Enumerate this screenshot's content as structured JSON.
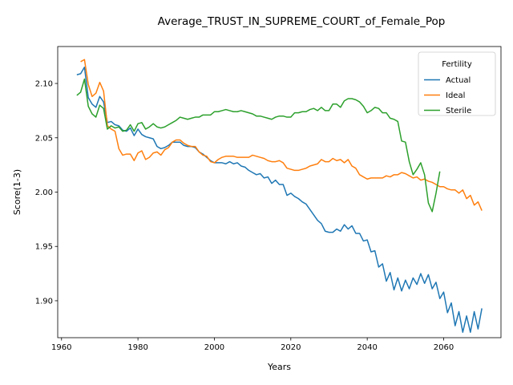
{
  "chart_data": {
    "type": "line",
    "title": "Average_TRUST_IN_SUPREME_COURT_of_Female_Pop",
    "xlabel": "Years",
    "ylabel": "Score(1-3)",
    "xlim": [
      1959,
      2075
    ],
    "ylim": [
      1.866,
      2.134
    ],
    "xticks": [
      1960,
      1980,
      2000,
      2020,
      2040,
      2060
    ],
    "yticks": [
      1.9,
      1.95,
      2.0,
      2.05,
      2.1
    ],
    "ytick_labels": [
      "1.90",
      "1.95",
      "2.00",
      "2.05",
      "2.10"
    ],
    "grid": false,
    "legend": {
      "title": "Fertility",
      "position": "top-right"
    },
    "series": [
      {
        "name": "Actual",
        "color": "#1f77b4",
        "x": [
          1964,
          1965,
          1966,
          1967,
          1968,
          1969,
          1970,
          1971,
          1972,
          1973,
          1974,
          1975,
          1976,
          1977,
          1978,
          1979,
          1980,
          1981,
          1982,
          1983,
          1984,
          1985,
          1986,
          1987,
          1988,
          1989,
          1990,
          1991,
          1992,
          1993,
          1994,
          1995,
          1996,
          1997,
          1998,
          1999,
          2000,
          2001,
          2002,
          2003,
          2004,
          2005,
          2006,
          2007,
          2008,
          2009,
          2010,
          2011,
          2012,
          2013,
          2014,
          2015,
          2016,
          2017,
          2018,
          2019,
          2020,
          2021,
          2022,
          2023,
          2024,
          2025,
          2026,
          2027,
          2028,
          2029,
          2030,
          2031,
          2032,
          2033,
          2034,
          2035,
          2036,
          2037,
          2038,
          2039,
          2040,
          2041,
          2042,
          2043,
          2044,
          2045,
          2046,
          2047,
          2048,
          2049,
          2050,
          2051,
          2052,
          2053,
          2054,
          2055,
          2056,
          2057,
          2058,
          2059,
          2060,
          2061,
          2062,
          2063,
          2064,
          2065,
          2066,
          2067,
          2068,
          2069,
          2070
        ],
        "y": [
          2.108,
          2.109,
          2.115,
          2.087,
          2.081,
          2.078,
          2.088,
          2.083,
          2.064,
          2.065,
          2.062,
          2.061,
          2.057,
          2.056,
          2.059,
          2.052,
          2.058,
          2.053,
          2.051,
          2.05,
          2.049,
          2.042,
          2.04,
          2.041,
          2.043,
          2.046,
          2.046,
          2.046,
          2.043,
          2.042,
          2.042,
          2.041,
          2.037,
          2.035,
          2.032,
          2.029,
          2.027,
          2.027,
          2.027,
          2.026,
          2.028,
          2.026,
          2.027,
          2.024,
          2.023,
          2.02,
          2.018,
          2.016,
          2.017,
          2.013,
          2.014,
          2.008,
          2.011,
          2.007,
          2.007,
          1.997,
          1.999,
          1.996,
          1.994,
          1.991,
          1.989,
          1.984,
          1.979,
          1.974,
          1.971,
          1.964,
          1.963,
          1.963,
          1.966,
          1.964,
          1.97,
          1.966,
          1.969,
          1.962,
          1.962,
          1.955,
          1.956,
          1.945,
          1.946,
          1.931,
          1.934,
          1.918,
          1.926,
          1.91,
          1.921,
          1.909,
          1.919,
          1.911,
          1.921,
          1.915,
          1.925,
          1.916,
          1.924,
          1.911,
          1.917,
          1.902,
          1.908,
          1.889,
          1.898,
          1.877,
          1.89,
          1.871,
          1.886,
          1.871,
          1.89,
          1.874,
          1.893
        ]
      },
      {
        "name": "Ideal",
        "color": "#ff7f0e",
        "x": [
          1965,
          1966,
          1967,
          1968,
          1969,
          1970,
          1971,
          1972,
          1973,
          1974,
          1975,
          1976,
          1977,
          1978,
          1979,
          1980,
          1981,
          1982,
          1983,
          1984,
          1985,
          1986,
          1987,
          1988,
          1989,
          1990,
          1991,
          1992,
          1993,
          1994,
          1995,
          1996,
          1997,
          1998,
          1999,
          2000,
          2001,
          2002,
          2003,
          2004,
          2005,
          2006,
          2007,
          2008,
          2009,
          2010,
          2011,
          2012,
          2013,
          2014,
          2015,
          2016,
          2017,
          2018,
          2019,
          2020,
          2021,
          2022,
          2023,
          2024,
          2025,
          2026,
          2027,
          2028,
          2029,
          2030,
          2031,
          2032,
          2033,
          2034,
          2035,
          2036,
          2037,
          2038,
          2039,
          2040,
          2041,
          2042,
          2043,
          2044,
          2045,
          2046,
          2047,
          2048,
          2049,
          2050,
          2051,
          2052,
          2053,
          2054,
          2055,
          2056,
          2057,
          2058,
          2059,
          2060,
          2061,
          2062,
          2063,
          2064,
          2065,
          2066,
          2067,
          2068,
          2069,
          2070
        ],
        "y": [
          2.12,
          2.122,
          2.099,
          2.088,
          2.091,
          2.101,
          2.093,
          2.061,
          2.058,
          2.056,
          2.04,
          2.034,
          2.035,
          2.035,
          2.029,
          2.036,
          2.038,
          2.03,
          2.032,
          2.036,
          2.037,
          2.034,
          2.039,
          2.041,
          2.046,
          2.048,
          2.048,
          2.045,
          2.043,
          2.042,
          2.042,
          2.037,
          2.034,
          2.033,
          2.028,
          2.027,
          2.03,
          2.032,
          2.033,
          2.033,
          2.033,
          2.032,
          2.032,
          2.032,
          2.032,
          2.034,
          2.033,
          2.032,
          2.031,
          2.029,
          2.028,
          2.028,
          2.029,
          2.027,
          2.022,
          2.021,
          2.02,
          2.02,
          2.021,
          2.022,
          2.024,
          2.025,
          2.026,
          2.03,
          2.028,
          2.028,
          2.031,
          2.029,
          2.03,
          2.027,
          2.03,
          2.024,
          2.022,
          2.016,
          2.014,
          2.012,
          2.013,
          2.013,
          2.013,
          2.013,
          2.015,
          2.014,
          2.016,
          2.016,
          2.018,
          2.017,
          2.015,
          2.013,
          2.014,
          2.011,
          2.012,
          2.01,
          2.009,
          2.007,
          2.005,
          2.005,
          2.003,
          2.002,
          2.002,
          1.999,
          2.002,
          1.994,
          1.997,
          1.988,
          1.991,
          1.983
        ]
      },
      {
        "name": "Sterile",
        "color": "#2ca02c",
        "x": [
          1964,
          1965,
          1966,
          1967,
          1968,
          1969,
          1970,
          1971,
          1972,
          1973,
          1974,
          1975,
          1976,
          1977,
          1978,
          1979,
          1980,
          1981,
          1982,
          1983,
          1984,
          1985,
          1986,
          1987,
          1988,
          1989,
          1990,
          1991,
          1992,
          1993,
          1994,
          1995,
          1996,
          1997,
          1998,
          1999,
          2000,
          2001,
          2002,
          2003,
          2004,
          2005,
          2006,
          2007,
          2008,
          2009,
          2010,
          2011,
          2012,
          2013,
          2014,
          2015,
          2016,
          2017,
          2018,
          2019,
          2020,
          2021,
          2022,
          2023,
          2024,
          2025,
          2026,
          2027,
          2028,
          2029,
          2030,
          2031,
          2032,
          2033,
          2034,
          2035,
          2036,
          2037,
          2038,
          2039,
          2040,
          2041,
          2042,
          2043,
          2044,
          2045,
          2046,
          2047,
          2048,
          2049,
          2050,
          2051,
          2052,
          2053,
          2054,
          2055,
          2056,
          2057,
          2058,
          2059
        ],
        "y": [
          2.089,
          2.092,
          2.104,
          2.079,
          2.072,
          2.069,
          2.08,
          2.077,
          2.058,
          2.061,
          2.059,
          2.06,
          2.056,
          2.057,
          2.062,
          2.056,
          2.063,
          2.064,
          2.058,
          2.06,
          2.063,
          2.06,
          2.059,
          2.06,
          2.062,
          2.064,
          2.066,
          2.069,
          2.068,
          2.067,
          2.068,
          2.069,
          2.069,
          2.071,
          2.071,
          2.071,
          2.074,
          2.074,
          2.075,
          2.076,
          2.075,
          2.074,
          2.074,
          2.075,
          2.074,
          2.073,
          2.072,
          2.07,
          2.07,
          2.069,
          2.068,
          2.067,
          2.069,
          2.07,
          2.07,
          2.069,
          2.069,
          2.073,
          2.073,
          2.074,
          2.074,
          2.076,
          2.077,
          2.075,
          2.078,
          2.075,
          2.075,
          2.081,
          2.081,
          2.078,
          2.084,
          2.086,
          2.086,
          2.085,
          2.083,
          2.079,
          2.073,
          2.075,
          2.078,
          2.077,
          2.073,
          2.073,
          2.068,
          2.067,
          2.065,
          2.047,
          2.046,
          2.028,
          2.016,
          2.021,
          2.027,
          2.016,
          1.99,
          1.982,
          1.999,
          2.019
        ]
      }
    ]
  }
}
